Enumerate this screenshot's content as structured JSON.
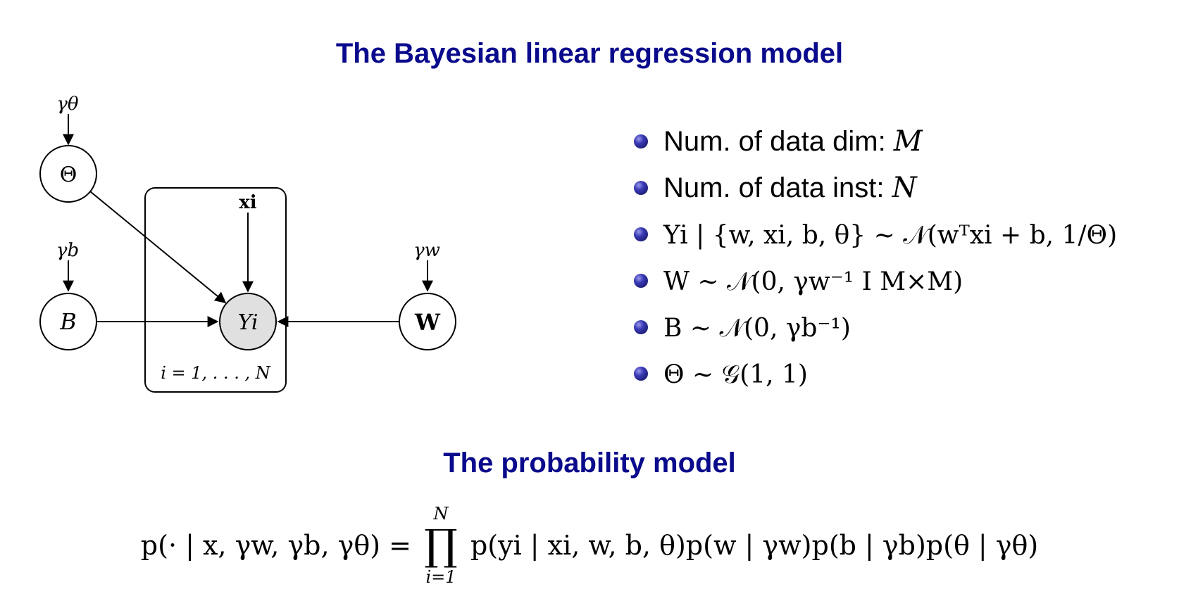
{
  "titles": {
    "model": "The Bayesian linear regression model",
    "probability": "The probability model"
  },
  "graph": {
    "hyper_theta": "γθ",
    "hyper_b": "γb",
    "hyper_w": "γw",
    "node_theta": "Θ",
    "node_b": "B",
    "node_w": "W",
    "node_y": "Yi",
    "node_x": "xi",
    "plate_label": "i = 1, . . . , N"
  },
  "bullets": [
    {
      "prefix": "Num. of data dim: ",
      "math": "M"
    },
    {
      "prefix": "Num. of data inst: ",
      "math": "N"
    },
    {
      "prefix": "",
      "math": "Yi | {w, xi, b, θ} ∼ 𝒩(wᵀxi + b, 1/Θ)"
    },
    {
      "prefix": "",
      "math": "W ∼ 𝒩(0, γw⁻¹ I M×M)"
    },
    {
      "prefix": "",
      "math": "B ∼ 𝒩(0, γb⁻¹)"
    },
    {
      "prefix": "",
      "math": "Θ ∼ 𝒢(1, 1)"
    }
  ],
  "formula": {
    "lhs": "p(· | x, γw, γb, γθ) =",
    "prod_upper": "N",
    "prod_symbol": "∏",
    "prod_lower": "i=1",
    "rhs": "p(yi | xi, w, b, θ)p(w | γw)p(b | γb)p(θ | γθ)"
  }
}
